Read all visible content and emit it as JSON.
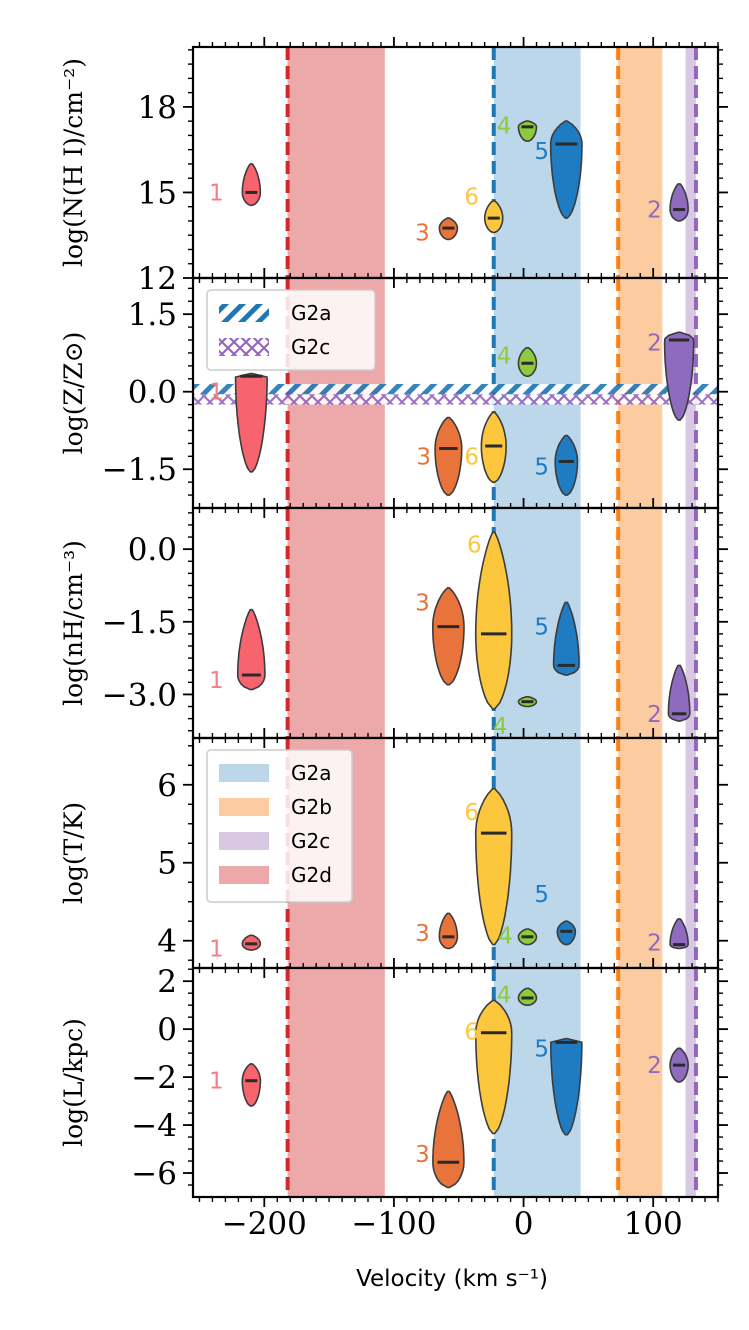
{
  "chart_data": {
    "type": "violin",
    "xlabel": "Velocity (km s⁻¹)",
    "xlim": [
      -255,
      150
    ],
    "xticks": [
      -200,
      -100,
      0,
      100
    ],
    "xtick_labels": [
      "−200",
      "−100",
      "0",
      "100"
    ],
    "xminor_step": 10,
    "components": {
      "colors": {
        "1": "#f8646d",
        "2": "#8e6bbf",
        "3": "#e8743b",
        "4": "#8ccb3c",
        "5": "#1f7cc3",
        "6": "#fcc73d"
      },
      "label_colors": {
        "1": "#f87c85",
        "2": "#8e6bbf",
        "3": "#e8743b",
        "4": "#8ccb3c",
        "5": "#1f7cc3",
        "6": "#fcc73d"
      },
      "velocities": {
        "1": -210,
        "2": 120,
        "3": -58,
        "4": 3,
        "5": 33,
        "6": -23
      }
    },
    "groups": [
      {
        "name": "G2a",
        "range": [
          -23,
          44
        ],
        "color": "#bcd6ea",
        "line_color": "#1f77b4",
        "line_x": -23
      },
      {
        "name": "G2b",
        "range": [
          73,
          107
        ],
        "color": "#fdcba0",
        "line_color": "#ff7f0e",
        "line_x": 73
      },
      {
        "name": "G2c",
        "range": [
          125,
          133
        ],
        "color": "#d8c8e6",
        "line_color": "#9467bd",
        "line_x": 133
      },
      {
        "name": "G2d",
        "range": [
          -182,
          -107
        ],
        "color": "#eda9aa",
        "line_color": "#d62728",
        "line_x": -182
      }
    ],
    "panels": [
      {
        "ylabel": "log(N(H I)/cm⁻²)",
        "ylim": [
          12,
          20.1
        ],
        "yticks": [
          12,
          15,
          18
        ],
        "ytick_labels": [
          "12",
          "15",
          "18"
        ],
        "yminor_step": 0.5,
        "violins": [
          {
            "id": "1",
            "median": 15.0,
            "min": 14.55,
            "max": 16.0,
            "label_pos": [
              -237,
              15.0
            ]
          },
          {
            "id": "3",
            "median": 13.75,
            "min": 13.35,
            "max": 14.1,
            "label_pos": [
              -78,
              13.6
            ]
          },
          {
            "id": "6",
            "median": 14.1,
            "min": 13.6,
            "max": 14.7,
            "label_pos": [
              -40,
              14.85
            ]
          },
          {
            "id": "4",
            "median": 17.3,
            "min": 16.8,
            "max": 17.5,
            "label_pos": [
              -15,
              17.35
            ]
          },
          {
            "id": "5",
            "median": 16.7,
            "min": 14.1,
            "max": 17.5,
            "label_pos": [
              14,
              16.45
            ]
          },
          {
            "id": "2",
            "median": 14.4,
            "min": 14.0,
            "max": 15.3,
            "label_pos": [
              101,
              14.4
            ]
          }
        ]
      },
      {
        "ylabel": "log(Z/Z⊙)",
        "ylim": [
          -2.25,
          2.2
        ],
        "yticks": [
          -1.5,
          0.0,
          1.5
        ],
        "ytick_labels": [
          "−1.5",
          "0.0",
          "1.5"
        ],
        "yminor_step": 0.25,
        "legend": [
          "G2a",
          "G2c"
        ],
        "bands": [
          {
            "name": "G2a",
            "y": [
              -0.05,
              0.15
            ],
            "color": "#1f77b4",
            "pattern": "hatch"
          },
          {
            "name": "G2c",
            "y": [
              -0.25,
              -0.05
            ],
            "color": "#9467bd",
            "pattern": "cross"
          }
        ],
        "violins": [
          {
            "id": "1",
            "median": 0.3,
            "min": -1.55,
            "max": 0.35,
            "label_pos": [
              -237,
              0.0
            ]
          },
          {
            "id": "3",
            "median": -1.1,
            "min": -2.0,
            "max": -0.5,
            "label_pos": [
              -77,
              -1.25
            ]
          },
          {
            "id": "6",
            "median": -1.05,
            "min": -1.75,
            "max": -0.4,
            "label_pos": [
              -40,
              -1.25
            ]
          },
          {
            "id": "4",
            "median": 0.55,
            "min": 0.3,
            "max": 0.85,
            "label_pos": [
              -15,
              0.7
            ]
          },
          {
            "id": "5",
            "median": -1.35,
            "min": -2.0,
            "max": -0.85,
            "label_pos": [
              14,
              -1.45
            ]
          },
          {
            "id": "2",
            "median": 1.0,
            "min": -0.55,
            "max": 1.15,
            "label_pos": [
              101,
              0.95
            ]
          }
        ]
      },
      {
        "ylabel": "log(nH/cm⁻³)",
        "ylim": [
          -3.9,
          0.85
        ],
        "yticks": [
          -3.0,
          -1.5,
          0.0
        ],
        "ytick_labels": [
          "−3.0",
          "−1.5",
          "0.0"
        ],
        "yminor_step": 0.25,
        "violins": [
          {
            "id": "1",
            "median": -2.6,
            "min": -2.9,
            "max": -1.25,
            "label_pos": [
              -237,
              -2.7
            ]
          },
          {
            "id": "3",
            "median": -1.6,
            "min": -2.8,
            "max": -0.8,
            "label_pos": [
              -78,
              -1.1
            ]
          },
          {
            "id": "6",
            "median": -1.75,
            "min": -3.3,
            "max": 0.35,
            "label_pos": [
              -38,
              0.1
            ]
          },
          {
            "id": "4",
            "median": -3.15,
            "min": -3.25,
            "max": -3.05,
            "label_pos": [
              -18,
              -3.65
            ]
          },
          {
            "id": "5",
            "median": -2.4,
            "min": -2.6,
            "max": -1.1,
            "label_pos": [
              14,
              -1.6
            ]
          },
          {
            "id": "2",
            "median": -3.4,
            "min": -3.55,
            "max": -2.4,
            "label_pos": [
              101,
              -3.4
            ]
          }
        ]
      },
      {
        "ylabel": "log(T/K)",
        "ylim": [
          3.65,
          6.6
        ],
        "yticks": [
          4,
          5,
          6
        ],
        "ytick_labels": [
          "4",
          "5",
          "6"
        ],
        "yminor_step": 0.25,
        "legend": [
          "G2a",
          "G2b",
          "G2c",
          "G2d"
        ],
        "violins": [
          {
            "id": "1",
            "median": 3.96,
            "min": 3.88,
            "max": 4.07,
            "label_pos": [
              -237,
              3.9
            ]
          },
          {
            "id": "3",
            "median": 4.05,
            "min": 3.9,
            "max": 4.35,
            "label_pos": [
              -78,
              4.1
            ]
          },
          {
            "id": "6",
            "median": 5.38,
            "min": 3.95,
            "max": 5.95,
            "label_pos": [
              -40,
              5.65
            ]
          },
          {
            "id": "4",
            "median": 4.05,
            "min": 3.95,
            "max": 4.15,
            "label_pos": [
              -14,
              4.07
            ]
          },
          {
            "id": "5",
            "median": 4.12,
            "min": 3.95,
            "max": 4.25,
            "label_pos": [
              14,
              4.6
            ]
          },
          {
            "id": "2",
            "median": 3.95,
            "min": 3.9,
            "max": 4.28,
            "label_pos": [
              101,
              3.98
            ]
          }
        ]
      },
      {
        "ylabel": "log(L/kpc)",
        "ylim": [
          -7.0,
          2.55
        ],
        "yticks": [
          -6,
          -4,
          -2,
          0,
          2
        ],
        "ytick_labels": [
          "−6",
          "−4",
          "−2",
          "0",
          "2"
        ],
        "yminor_step": 0.5,
        "violins": [
          {
            "id": "1",
            "median": -2.15,
            "min": -3.2,
            "max": -1.45,
            "label_pos": [
              -237,
              -2.15
            ]
          },
          {
            "id": "3",
            "median": -5.55,
            "min": -6.6,
            "max": -2.6,
            "label_pos": [
              -78,
              -5.2
            ]
          },
          {
            "id": "6",
            "median": -0.15,
            "min": -4.35,
            "max": 1.2,
            "label_pos": [
              -40,
              -0.1
            ]
          },
          {
            "id": "4",
            "median": 1.3,
            "min": 1.0,
            "max": 1.7,
            "label_pos": [
              -15,
              1.45
            ]
          },
          {
            "id": "5",
            "median": -0.55,
            "min": -4.4,
            "max": -0.4,
            "label_pos": [
              14,
              -0.8
            ]
          },
          {
            "id": "2",
            "median": -1.5,
            "min": -2.2,
            "max": -0.8,
            "label_pos": [
              101,
              -1.5
            ]
          }
        ]
      }
    ]
  }
}
